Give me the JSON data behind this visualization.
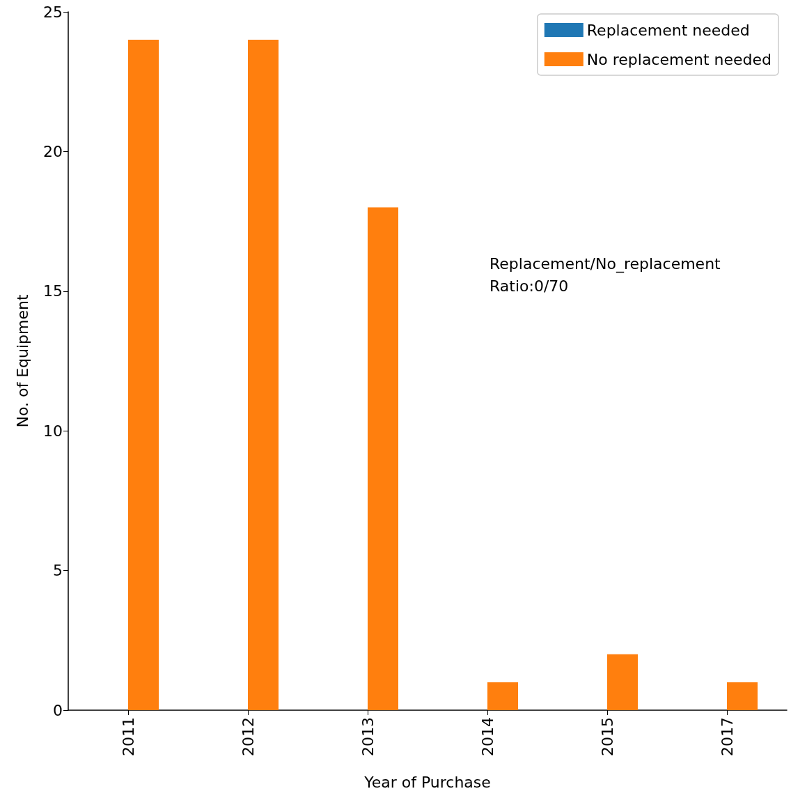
{
  "chart_data": {
    "type": "bar",
    "xlabel": "Year of Purchase",
    "ylabel": "No. of Equipment",
    "categories": [
      "2011",
      "2012",
      "2013",
      "2014",
      "2015",
      "2017"
    ],
    "series": [
      {
        "name": "Replacement needed",
        "color": "#1f77b4",
        "values": [
          0,
          0,
          0,
          0,
          0,
          0
        ]
      },
      {
        "name": "No replacement needed",
        "color": "#ff7f0e",
        "values": [
          24,
          24,
          18,
          1,
          2,
          1
        ]
      }
    ],
    "ylim": [
      0,
      25
    ],
    "yticks": [
      0,
      5,
      10,
      15,
      20,
      25
    ],
    "grid": false,
    "legend": "top right",
    "annotations": [
      "Replacement/No_replacement\nRatio:0/70"
    ]
  }
}
